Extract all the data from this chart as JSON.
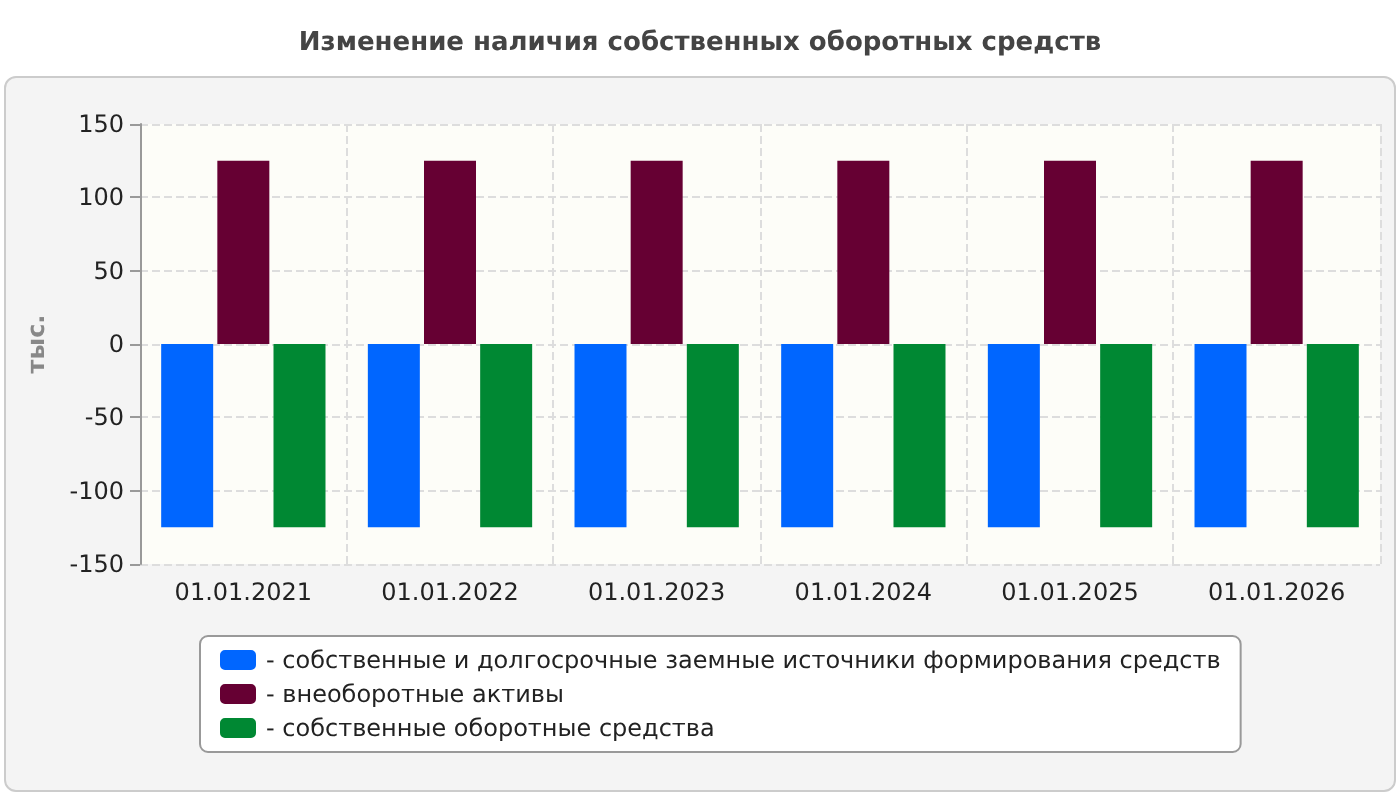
{
  "chart_data": {
    "type": "bar",
    "title": "Изменение наличия собственных оборотных средств",
    "ylabel": "тыс.",
    "categories": [
      "01.01.2021",
      "01.01.2022",
      "01.01.2023",
      "01.01.2024",
      "01.01.2025",
      "01.01.2026"
    ],
    "series": [
      {
        "name": "- собственные и долгосрочные заемные источники формирования средств",
        "color": "#0066ff",
        "values": [
          -125,
          -125,
          -125,
          -125,
          -125,
          -125
        ]
      },
      {
        "name": "- внеоборотные активы",
        "color": "#660033",
        "values": [
          125,
          125,
          125,
          125,
          125,
          125
        ]
      },
      {
        "name": "- собственные оборотные средства",
        "color": "#008833",
        "values": [
          -125,
          -125,
          -125,
          -125,
          -125,
          -125
        ]
      }
    ],
    "ylim": [
      -150,
      150
    ],
    "yticks": [
      -150,
      -100,
      -50,
      0,
      50,
      100,
      150
    ],
    "grid": true,
    "legend": "bottom"
  }
}
